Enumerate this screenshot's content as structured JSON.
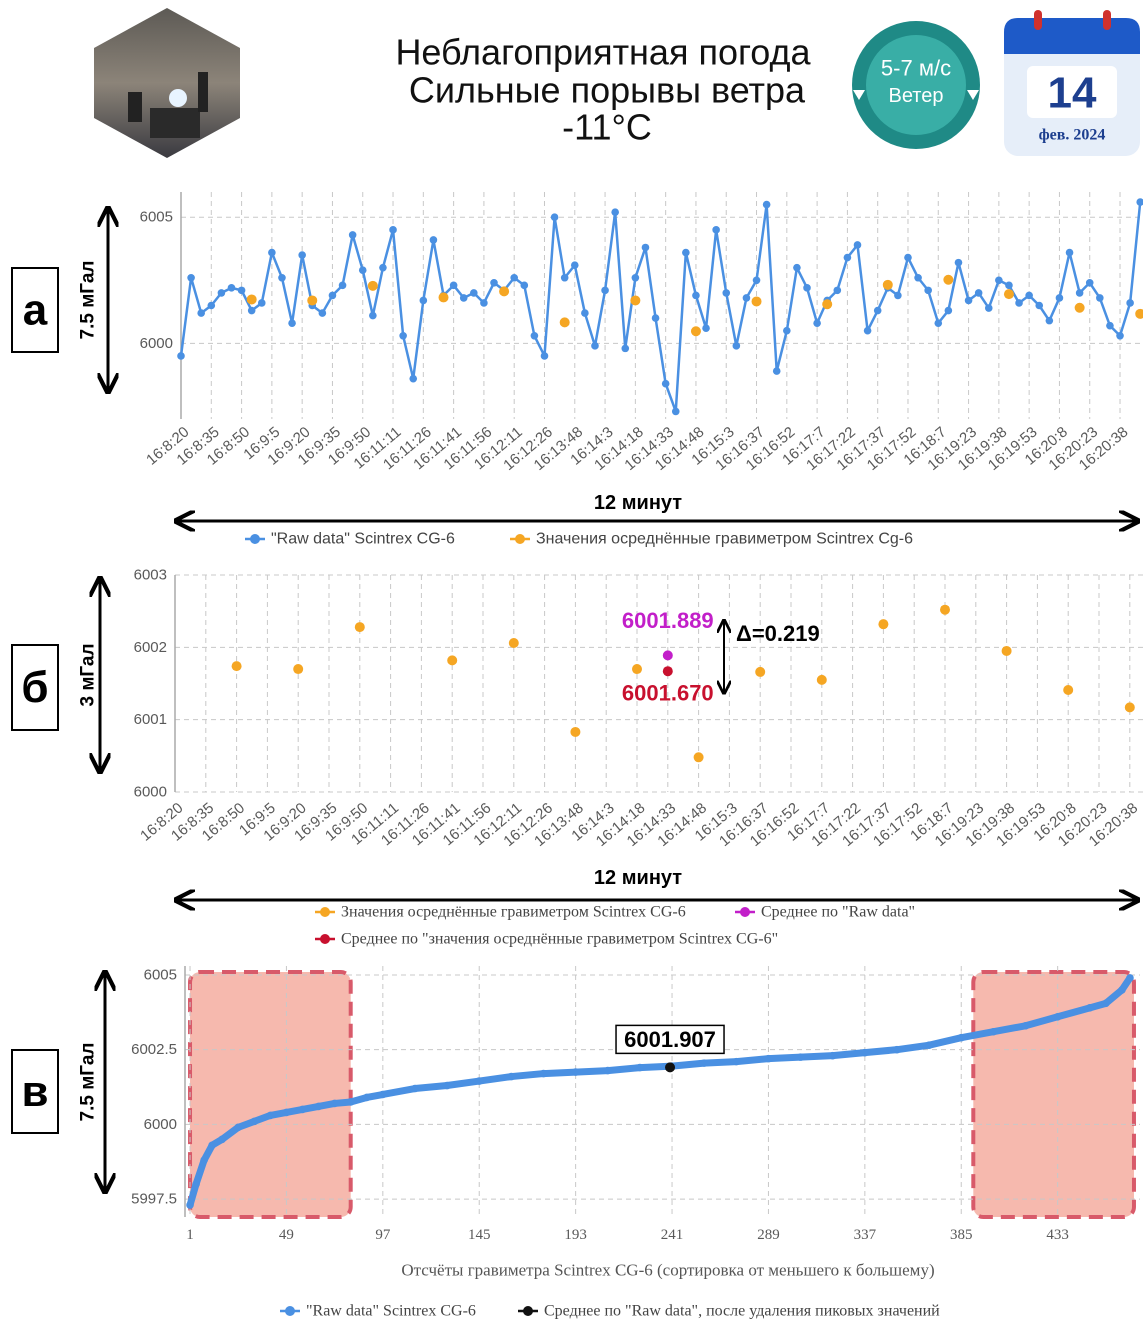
{
  "header": {
    "title_lines": [
      "Неблагоприятная погода",
      "Сильные порывы ветра",
      "-11°C"
    ],
    "wind": {
      "speed": "5-7 м/с",
      "label": "Ветер"
    },
    "calendar": {
      "day": "14",
      "month_year": "фев. 2024"
    }
  },
  "chart_data": [
    {
      "type": "line",
      "panel_label": "а",
      "range_label": "7.5 мГал",
      "duration_label": "12 минут",
      "grid": true,
      "categories": [
        "16:8:20",
        null,
        null,
        "16:8:35",
        null,
        null,
        "16:8:50",
        null,
        null,
        "16:9:5",
        null,
        null,
        "16:9:20",
        null,
        null,
        "16:9:35",
        null,
        null,
        "16:9:50",
        null,
        null,
        "16:11:11",
        null,
        null,
        "16:11:26",
        null,
        null,
        "16:11:41",
        null,
        null,
        "16:11:56",
        null,
        null,
        "16:12:11",
        null,
        null,
        "16:12:26",
        null,
        null,
        "16:13:48",
        null,
        null,
        "16:14:3",
        null,
        null,
        "16:14:18",
        null,
        null,
        "16:14:33",
        null,
        null,
        "16:14:48",
        null,
        null,
        "16:15:3",
        null,
        null,
        "16:16:37",
        null,
        null,
        "16:16:52",
        null,
        null,
        "16:17:7",
        null,
        null,
        "16:17:22",
        null,
        null,
        "16:17:37",
        null,
        null,
        "16:17:52",
        null,
        null,
        "16:18:7",
        null,
        null,
        "16:19:23",
        null,
        null,
        "16:19:38",
        null,
        null,
        "16:19:53",
        null,
        null,
        "16:20:8",
        null,
        null,
        "16:20:23",
        null,
        null,
        "16:20:38",
        null,
        null
      ],
      "ylim": [
        5997,
        6006
      ],
      "yticks": [
        6000,
        6005
      ],
      "series": [
        {
          "name": "\"Raw data\" Scintrex CG-6",
          "color": "#4a90e2",
          "mode": "lines+markers",
          "values": [
            5999.5,
            6002.6,
            6001.2,
            6001.5,
            6002.0,
            6002.2,
            6002.1,
            6001.3,
            6001.6,
            6003.6,
            6002.6,
            6000.8,
            6003.5,
            6001.5,
            6001.2,
            6001.9,
            6002.3,
            6004.3,
            6002.9,
            6001.1,
            6003.0,
            6004.5,
            6000.3,
            5998.6,
            6001.7,
            6004.1,
            6001.9,
            6002.3,
            6001.8,
            6002.0,
            6001.6,
            6002.4,
            6002.1,
            6002.6,
            6002.3,
            6000.3,
            5999.5,
            6005.0,
            6002.6,
            6003.1,
            6001.2,
            5999.9,
            6002.1,
            6005.2,
            5999.8,
            6002.6,
            6003.8,
            6001.0,
            5998.4,
            5997.3,
            6003.6,
            6001.9,
            6000.6,
            6004.5,
            6002.0,
            5999.9,
            6001.8,
            6002.5,
            6005.5,
            5998.9,
            6000.5,
            6003.0,
            6002.2,
            6000.8,
            6001.7,
            6002.1,
            6003.4,
            6003.9,
            6000.5,
            6001.3,
            6002.2,
            6001.9,
            6003.4,
            6002.6,
            6002.1,
            6000.8,
            6001.3,
            6003.2,
            6001.7,
            6002.0,
            6001.4,
            6002.5,
            6002.3,
            6001.6,
            6001.9,
            6001.5,
            6000.9,
            6001.8,
            6003.6,
            6002.0,
            6002.4,
            6001.8,
            6000.7,
            6000.3,
            6001.6,
            6005.6
          ]
        },
        {
          "name": "Значения осреднённые гравиметром Scintrex Cg-6",
          "color": "#f5a623",
          "mode": "markers",
          "values": [
            null,
            null,
            null,
            null,
            null,
            null,
            null,
            6001.74,
            null,
            null,
            null,
            null,
            null,
            6001.7,
            null,
            null,
            null,
            null,
            null,
            6002.28,
            null,
            null,
            null,
            null,
            null,
            null,
            6001.82,
            null,
            null,
            null,
            null,
            null,
            6002.06,
            null,
            null,
            null,
            null,
            null,
            6000.83,
            null,
            null,
            null,
            null,
            null,
            null,
            6001.7,
            null,
            null,
            null,
            null,
            null,
            6000.48,
            null,
            null,
            null,
            null,
            null,
            6001.66,
            null,
            null,
            null,
            null,
            null,
            null,
            6001.55,
            null,
            null,
            null,
            null,
            null,
            6002.32,
            null,
            null,
            null,
            null,
            null,
            6002.52,
            null,
            null,
            null,
            null,
            null,
            6001.95,
            null,
            null,
            null,
            null,
            null,
            null,
            6001.41,
            null,
            null,
            null,
            null,
            null,
            6001.17
          ]
        }
      ]
    },
    {
      "type": "scatter",
      "panel_label": "б",
      "range_label": "3 мГал",
      "duration_label": "12 минут",
      "grid": true,
      "categories": [
        "16:8:20",
        "16:8:35",
        "16:8:50",
        "16:9:5",
        "16:9:20",
        "16:9:35",
        "16:9:50",
        "16:11:11",
        "16:11:26",
        "16:11:41",
        "16:11:56",
        "16:12:11",
        "16:12:26",
        "16:13:48",
        "16:14:3",
        "16:14:18",
        "16:14:33",
        "16:14:48",
        "16:15:3",
        "16:16:37",
        "16:16:52",
        "16:17:7",
        "16:17:22",
        "16:17:37",
        "16:17:52",
        "16:18:7",
        "16:19:23",
        "16:19:38",
        "16:19:53",
        "16:20:8",
        "16:20:23",
        "16:20:38"
      ],
      "ylim": [
        6000,
        6003
      ],
      "yticks": [
        6000,
        6001,
        6002,
        6003
      ],
      "annotations": {
        "difference": "Δ=0.219"
      },
      "series": [
        {
          "name": "Значения осреднённые гравиметром Scintrex CG-6",
          "color": "#f5a623",
          "mode": "markers",
          "values": [
            null,
            null,
            6001.74,
            null,
            6001.7,
            null,
            6002.28,
            null,
            null,
            6001.82,
            null,
            6002.06,
            null,
            6000.83,
            null,
            6001.7,
            null,
            6000.48,
            null,
            6001.66,
            null,
            6001.55,
            null,
            6002.32,
            null,
            6002.52,
            null,
            6001.95,
            null,
            6001.41,
            null,
            6001.17
          ]
        },
        {
          "name": "Среднее по \"Raw data\"",
          "color": "#c21fc9",
          "mode": "markers",
          "show_value_label": true,
          "values": [
            null,
            null,
            null,
            null,
            null,
            null,
            null,
            null,
            null,
            null,
            null,
            null,
            null,
            null,
            null,
            null,
            6001.889,
            null,
            null,
            null,
            null,
            null,
            null,
            null,
            null,
            null,
            null,
            null,
            null,
            null,
            null,
            null
          ]
        },
        {
          "name": "Среднее по \"значения осреднённые гравиметром Scintrex CG-6\"",
          "color": "#c8102e",
          "mode": "markers",
          "show_value_label": true,
          "values": [
            null,
            null,
            null,
            null,
            null,
            null,
            null,
            null,
            null,
            null,
            null,
            null,
            null,
            null,
            null,
            null,
            6001.67,
            null,
            null,
            null,
            null,
            null,
            null,
            null,
            null,
            null,
            null,
            null,
            null,
            null,
            null,
            null
          ],
          "value_labels": [
            null,
            null,
            null,
            null,
            null,
            null,
            null,
            null,
            null,
            null,
            null,
            null,
            null,
            null,
            null,
            null,
            "6001.670",
            null,
            null,
            null,
            null,
            null,
            null,
            null,
            null,
            null,
            null,
            null,
            null,
            null,
            null,
            null
          ]
        }
      ]
    },
    {
      "type": "line",
      "panel_label": "в",
      "range_label": "7.5 мГал",
      "x_label": "Отсчёты гравиметра Scintrex CG-6 (сортировка от меньшего к большему)",
      "grid": true,
      "xlim": [
        -1.5,
        474
      ],
      "xticks": [
        1,
        49,
        97,
        145,
        193,
        241,
        289,
        337,
        385,
        433
      ],
      "ylim": [
        5996.9,
        6005.3
      ],
      "yticks": [
        5997.5,
        6000,
        6002.5,
        6005
      ],
      "shaded_x_ranges": [
        [
          1,
          81
        ],
        [
          391,
          471
        ]
      ],
      "shaded_color": "#f08a78",
      "series": [
        {
          "name": "\"Raw data\" Scintrex CG-6",
          "color": "#4a90e2",
          "mode": "lines+markers",
          "x": [
            1,
            4,
            8,
            12,
            17,
            25,
            33,
            41,
            49,
            57,
            65,
            73,
            81,
            89,
            97,
            113,
            129,
            145,
            161,
            177,
            193,
            209,
            225,
            241,
            257,
            273,
            289,
            305,
            321,
            337,
            353,
            369,
            385,
            401,
            417,
            433,
            449,
            457,
            465,
            469
          ],
          "values": [
            5997.3,
            5998.0,
            5998.8,
            5999.3,
            5999.5,
            5999.9,
            6000.1,
            6000.3,
            6000.4,
            6000.5,
            6000.6,
            6000.7,
            6000.75,
            6000.9,
            6001.0,
            6001.2,
            6001.3,
            6001.45,
            6001.6,
            6001.7,
            6001.75,
            6001.8,
            6001.9,
            6001.95,
            6002.05,
            6002.1,
            6002.2,
            6002.25,
            6002.3,
            6002.4,
            6002.5,
            6002.65,
            6002.9,
            6003.1,
            6003.3,
            6003.6,
            6003.9,
            6004.05,
            6004.5,
            6004.9
          ]
        },
        {
          "name": "Среднее по \"Raw data\", после удаления пиковых значений",
          "color": "#111111",
          "mode": "markers",
          "show_value_label": true,
          "x": [
            240
          ],
          "values": [
            6001.907
          ]
        }
      ]
    }
  ]
}
